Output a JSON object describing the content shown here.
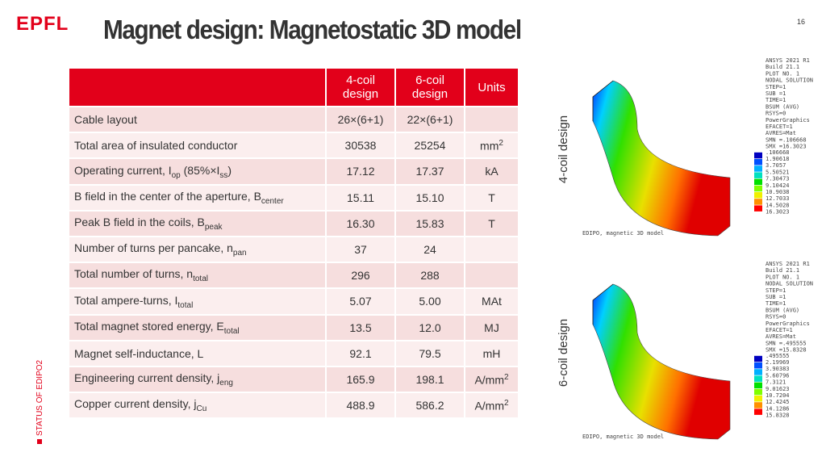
{
  "header": {
    "logo": "EPFL",
    "title": "Magnet design: Magnetostatic 3D model",
    "page": "16"
  },
  "footer": {
    "section": "STATUS OF EDIPO2"
  },
  "table": {
    "columns": [
      "",
      "4-coil design",
      "6-coil design",
      "Units"
    ],
    "rows": [
      [
        [
          "Cable layout"
        ],
        "26×(6+1)",
        "22×(6+1)",
        []
      ],
      [
        [
          "Total area of insulated conductor"
        ],
        "30538",
        "25254",
        [
          "mm",
          {
            "sup": "2"
          }
        ]
      ],
      [
        [
          "Operating current, I",
          {
            "sub": "op"
          },
          " (85%×I",
          {
            "sub": "ss"
          },
          ")"
        ],
        "17.12",
        "17.37",
        [
          "kA"
        ]
      ],
      [
        [
          "B field in the center of the aperture, B",
          {
            "sub": "center"
          }
        ],
        "15.11",
        "15.10",
        [
          "T"
        ]
      ],
      [
        [
          "Peak B field in the coils, B",
          {
            "sub": "peak"
          }
        ],
        "16.30",
        "15.83",
        [
          "T"
        ]
      ],
      [
        [
          "Number of turns per pancake, n",
          {
            "sub": "pan"
          }
        ],
        "37",
        "24",
        []
      ],
      [
        [
          "Total number of turns, n",
          {
            "sub": "total"
          }
        ],
        "296",
        "288",
        []
      ],
      [
        [
          "Total ampere-turns, I",
          {
            "sub": "total"
          }
        ],
        "5.07",
        "5.00",
        [
          "MAt"
        ]
      ],
      [
        [
          "Total magnet stored energy, E",
          {
            "sub": "total"
          }
        ],
        "13.5",
        "12.0",
        [
          "MJ"
        ]
      ],
      [
        [
          "Magnet self-inductance, L"
        ],
        "92.1",
        "79.5",
        [
          "mH"
        ]
      ],
      [
        [
          "Engineering current density, j",
          {
            "sub": "eng"
          }
        ],
        "165.9",
        "198.1",
        [
          "A/mm",
          {
            "sup": "2"
          }
        ]
      ],
      [
        [
          "Copper current density, j",
          {
            "sub": "Cu"
          }
        ],
        "488.9",
        "586.2",
        [
          "A/mm",
          {
            "sup": "2"
          }
        ]
      ]
    ]
  },
  "figures": [
    {
      "label": "4-coil design",
      "info": [
        "ANSYS 2021 R1",
        "Build 21.1",
        "PLOT NO.   1",
        "NODAL SOLUTION",
        "STEP=1",
        "SUB =1",
        "TIME=1",
        "BSUM      (AVG)",
        "RSYS=0",
        "PowerGraphics",
        "EFACET=1",
        "AVRES=Mat",
        "SMN =.106668",
        "SMX =16.3023"
      ],
      "legend": [
        ".106668",
        "1.90618",
        "3.7057",
        "5.50521",
        "7.30473",
        "9.10424",
        "10.9038",
        "12.7033",
        "14.5028",
        "16.3023"
      ],
      "caption": "EDIPO, magnetic 3D model"
    },
    {
      "label": "6-coil design",
      "info": [
        "ANSYS 2021 R1",
        "Build 21.1",
        "PLOT NO.   1",
        "NODAL SOLUTION",
        "STEP=1",
        "SUB =1",
        "TIME=1",
        "BSUM      (AVG)",
        "RSYS=0",
        "PowerGraphics",
        "EFACET=1",
        "AVRES=Mat",
        "SMN =.495555",
        "SMX =15.8328"
      ],
      "legend": [
        ".495555",
        "2.19969",
        "3.90383",
        "5.60796",
        "7.3121",
        "9.01623",
        "10.7204",
        "12.4245",
        "14.1286",
        "15.8328"
      ],
      "caption": "EDIPO, magnetic 3D model"
    }
  ]
}
